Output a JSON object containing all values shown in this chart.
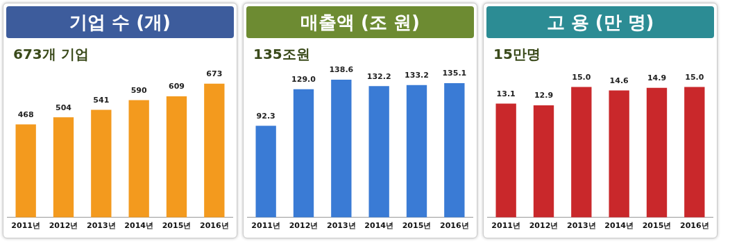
{
  "chart_data": [
    {
      "type": "bar",
      "title": "기업 수 (개)",
      "subtitle": "673개 기업",
      "categories": [
        "2011년",
        "2012년",
        "2013년",
        "2014년",
        "2015년",
        "2016년"
      ],
      "values": [
        468,
        504,
        541,
        590,
        609,
        673
      ],
      "value_labels": [
        "468",
        "504",
        "541",
        "590",
        "609",
        "673"
      ],
      "color": "#f39a1e",
      "grid": false,
      "legend": false
    },
    {
      "type": "bar",
      "title": "매출액 (조 원)",
      "subtitle": "135조원",
      "categories": [
        "2011년",
        "2012년",
        "2013년",
        "2014년",
        "2015년",
        "2016년"
      ],
      "values": [
        92.3,
        129.0,
        138.6,
        132.2,
        133.2,
        135.1
      ],
      "value_labels": [
        "92.3",
        "129.0",
        "138.6",
        "132.2",
        "133.2",
        "135.1"
      ],
      "color": "#3a7bd5",
      "grid": false,
      "legend": false
    },
    {
      "type": "bar",
      "title": "고 용 (만 명)",
      "subtitle": "15만명",
      "categories": [
        "2011년",
        "2012년",
        "2013년",
        "2014년",
        "2015년",
        "2016년"
      ],
      "values": [
        13.1,
        12.9,
        15.0,
        14.6,
        14.9,
        15.0
      ],
      "value_labels": [
        "13.1",
        "12.9",
        "15.0",
        "14.6",
        "14.9",
        "15.0"
      ],
      "color": "#c9282b",
      "grid": false,
      "legend": false
    }
  ]
}
